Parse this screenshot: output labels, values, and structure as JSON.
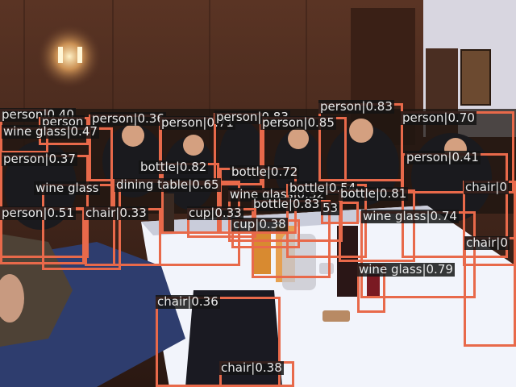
{
  "image": {
    "description_free": true,
    "box_color": "#e8694a",
    "label_bg": "#141414",
    "label_fg": "#e9e9e9"
  },
  "detections": [
    {
      "label": "person|0.40"
    },
    {
      "label": "person"
    },
    {
      "label": "person|0.36"
    },
    {
      "label": "person|0.71"
    },
    {
      "label": "person|0.83"
    },
    {
      "label": "person|0.83"
    },
    {
      "label": "person|0.85"
    },
    {
      "label": "person|0.70"
    },
    {
      "label": "wine glass|0.47"
    },
    {
      "label": "person|0.37"
    },
    {
      "label": "bottle|0.82"
    },
    {
      "label": "bottle|0.72"
    },
    {
      "label": "person|0.41"
    },
    {
      "label": "wine glass"
    },
    {
      "label": "dining table|0.65"
    },
    {
      "label": "wine glass|0.32"
    },
    {
      "label": "bottle|0.54"
    },
    {
      "label": "bottle|0.81"
    },
    {
      "label": "chair|0"
    },
    {
      "label": "bottle|0.83"
    },
    {
      "label": "person|0.51"
    },
    {
      "label": "chair|0.33"
    },
    {
      "label": "cup|0.33"
    },
    {
      "label": "53"
    },
    {
      "label": "wine glass|0.74"
    },
    {
      "label": "cup|0.38"
    },
    {
      "label": "chair|0"
    },
    {
      "label": "wine glass|0.79"
    },
    {
      "label": "chair|0.36"
    },
    {
      "label": "chair|0.38"
    }
  ]
}
